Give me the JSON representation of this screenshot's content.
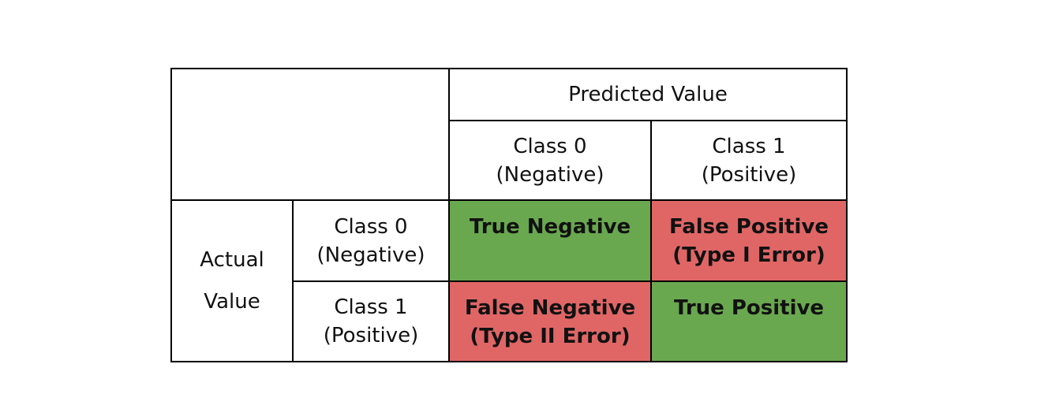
{
  "matrix": {
    "predicted_header": "Predicted Value",
    "actual_header": [
      "Actual",
      "Value"
    ],
    "predicted_classes": [
      [
        "Class 0",
        "(Negative)"
      ],
      [
        "Class 1",
        "(Positive)"
      ]
    ],
    "actual_classes": [
      [
        "Class 0",
        "(Negative)"
      ],
      [
        "Class 1",
        "(Positive)"
      ]
    ],
    "cells": [
      [
        [
          "True Negative"
        ],
        [
          "False Positive",
          "(Type I Error)"
        ]
      ],
      [
        [
          "False Negative",
          "(Type II Error)"
        ],
        [
          "True Positive"
        ]
      ]
    ]
  },
  "colors": {
    "correct": "#6aa84f",
    "error": "#e06666",
    "border": "#000000"
  }
}
